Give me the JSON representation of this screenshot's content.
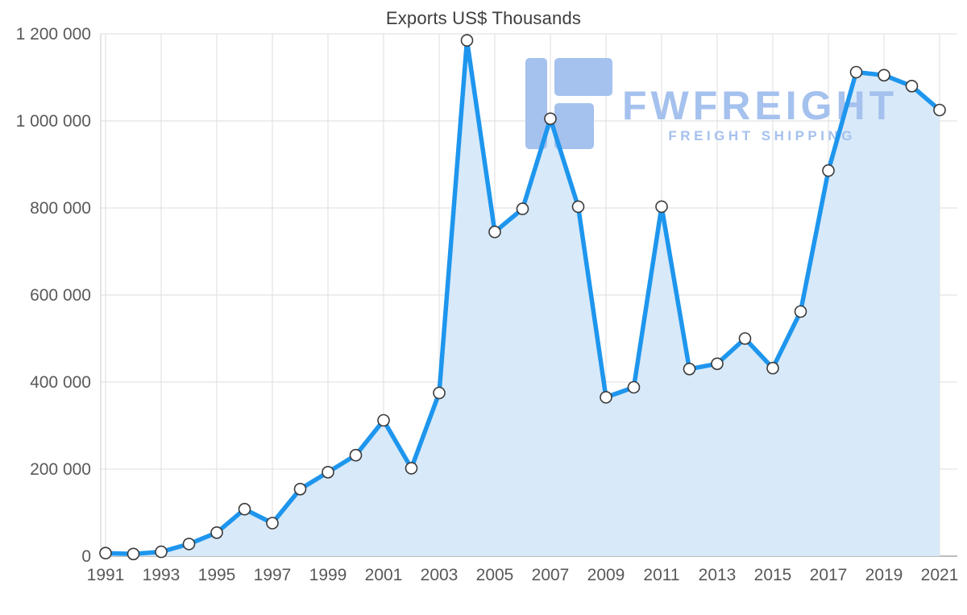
{
  "chart_data": {
    "type": "line",
    "title": "Exports US$ Thousands",
    "x": [
      1991,
      1992,
      1993,
      1994,
      1995,
      1996,
      1997,
      1998,
      1999,
      2000,
      2001,
      2002,
      2003,
      2004,
      2005,
      2006,
      2007,
      2008,
      2009,
      2010,
      2011,
      2012,
      2013,
      2014,
      2015,
      2016,
      2017,
      2018,
      2019,
      2020,
      2021
    ],
    "values": [
      7000,
      5000,
      10000,
      28000,
      54000,
      108000,
      76000,
      154000,
      193000,
      232000,
      312000,
      202000,
      375000,
      1185000,
      745000,
      798000,
      1005000,
      803000,
      365000,
      388000,
      803000,
      430000,
      442000,
      500000,
      432000,
      562000,
      886000,
      1112000,
      1105000,
      1080000,
      1025000
    ],
    "ylim": [
      0,
      1200000
    ],
    "ytick_values": [
      0,
      200000,
      400000,
      600000,
      800000,
      1000000,
      1200000
    ],
    "ytick_labels": [
      "0",
      "200 000",
      "400 000",
      "600 000",
      "800 000",
      "1 000 000",
      "1 200 000"
    ],
    "xtick_labels": [
      "1991",
      "1993",
      "1995",
      "1997",
      "1999",
      "2001",
      "2003",
      "2005",
      "2007",
      "2009",
      "2011",
      "2013",
      "2015",
      "2017",
      "2019",
      "2021"
    ],
    "grid": true,
    "legend": "none",
    "line_color": "#1e96ee",
    "fill_color": "#d8e9f9",
    "marker_fill": "#ffffff",
    "marker_stroke": "#3a3a3a",
    "gridline_color": "#dedede",
    "axis_line_color": "#a6a6a6",
    "tick_label_color": "#595959"
  },
  "watermark": {
    "brand": "FWFREIGHT",
    "tagline": "FREIGHT SHIPPING",
    "color": "#a5c1ee"
  }
}
